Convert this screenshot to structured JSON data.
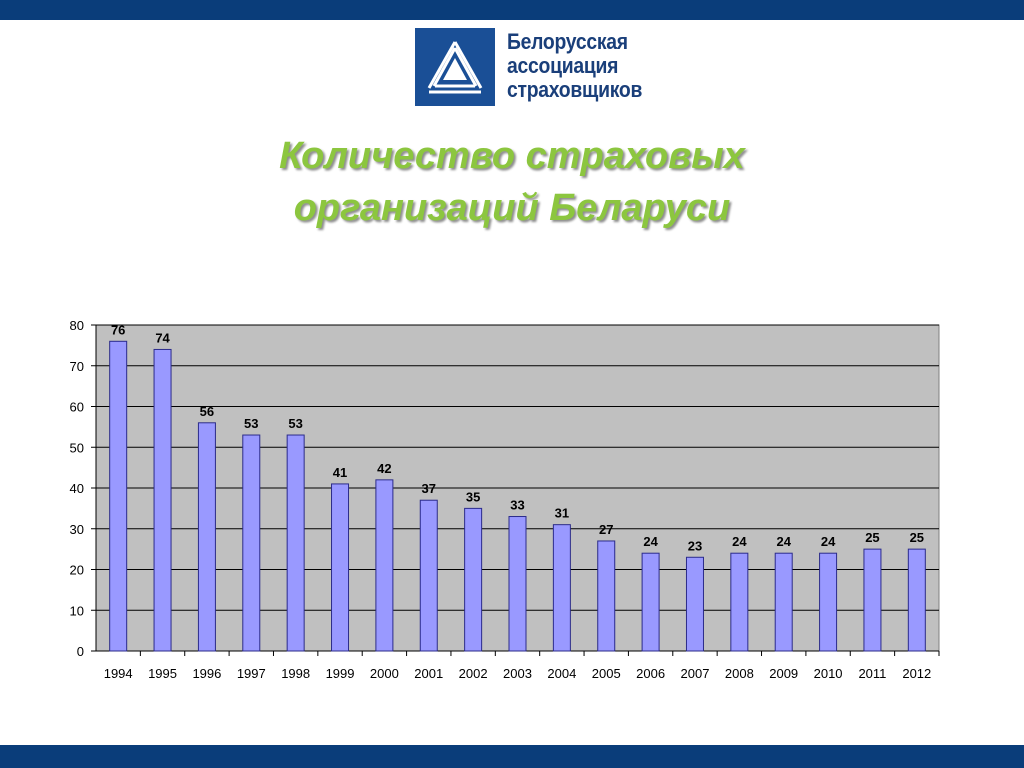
{
  "colors": {
    "band": "#0a3d7a",
    "logo_blue": "#1a4f96",
    "logo_text": "#1a3f7a",
    "title_green": "#8cc63f",
    "bar_fill": "#9999ff",
    "bar_stroke": "#2b2b8a",
    "plot_bg": "#c0c0c0",
    "grid": "#000000"
  },
  "logo": {
    "icon": "triangle-logo-icon",
    "lines": [
      "Белорусская",
      "ассоциация",
      "страховщиков"
    ]
  },
  "title": {
    "line1": "Количество страховых",
    "line2": "организаций Беларуси"
  },
  "chart_data": {
    "type": "bar",
    "categories": [
      "1994",
      "1995",
      "1996",
      "1997",
      "1998",
      "1999",
      "2000",
      "2001",
      "2002",
      "2003",
      "2004",
      "2005",
      "2006",
      "2007",
      "2008",
      "2009",
      "2010",
      "2011",
      "2012"
    ],
    "values": [
      76,
      74,
      56,
      53,
      53,
      41,
      42,
      37,
      35,
      33,
      31,
      27,
      24,
      23,
      24,
      24,
      24,
      25,
      25
    ],
    "ylim": [
      0,
      80
    ],
    "yticks": [
      0,
      10,
      20,
      30,
      40,
      50,
      60,
      70,
      80
    ],
    "grid": true,
    "legend": "none",
    "data_labels": true
  }
}
